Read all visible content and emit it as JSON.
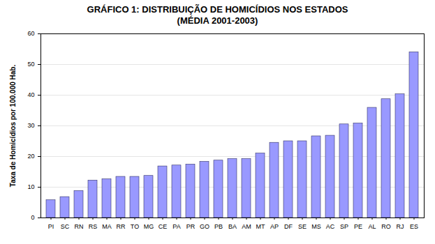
{
  "chart_data": {
    "type": "bar",
    "title": "GRÁFICO 1:  DISTRIBUIÇÃO DE HOMICÍDIOS NOS ESTADOS",
    "subtitle": "(MÉDIA 2001-2003)",
    "y_label": "Taxa de Homicídios por 100.000 Hab.",
    "categories": [
      "PI",
      "SC",
      "RN",
      "RS",
      "MA",
      "RR",
      "TO",
      "MG",
      "CE",
      "PA",
      "PR",
      "GO",
      "PB",
      "BA",
      "AM",
      "MT",
      "AP",
      "DF",
      "SE",
      "MS",
      "AC",
      "SP",
      "PE",
      "AL",
      "RO",
      "RJ",
      "ES"
    ],
    "values": [
      5.8,
      6.8,
      8.8,
      12.2,
      12.6,
      13.4,
      13.4,
      13.7,
      16.8,
      17.1,
      17.4,
      18.3,
      18.7,
      19.2,
      19.2,
      21.0,
      24.5,
      25.0,
      25.0,
      26.6,
      26.8,
      30.5,
      30.8,
      35.9,
      38.7,
      40.3,
      54.0
    ],
    "color": "#9999ff",
    "ylim": [
      0,
      60
    ],
    "yticks": [
      0,
      10,
      20,
      30,
      40,
      50,
      60
    ],
    "grid": true
  }
}
